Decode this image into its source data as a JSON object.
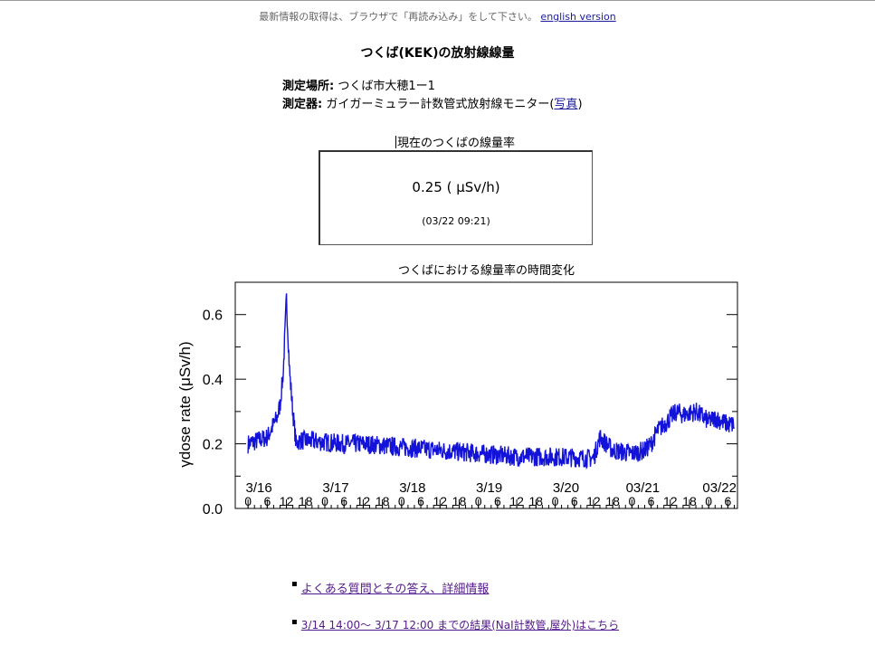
{
  "header": {
    "notice": "最新情報の取得は、ブラウザで「再読み込み」をして下さい。",
    "english_link": "english version"
  },
  "page_title": "つくば(KEK)の放射線線量",
  "info": {
    "location_label": "測定場所:",
    "location_value": "つくば市大穂1ー1",
    "device_label": "測定器:",
    "device_value": "ガイガーミュラー計数管式放射線モニター(",
    "photo_link": "写真",
    "device_close": ")"
  },
  "current": {
    "caption": "現在のつくばの線量率",
    "value": "0.25 ( μSv/h)",
    "timestamp": "(03/22 09:21)"
  },
  "chart_title": "つくばにおける線量率の時間変化",
  "chart_data": {
    "type": "line",
    "title": "",
    "ylabel": "γdose rate (μSv/h)",
    "xlabel": "",
    "ylim": [
      0.0,
      0.7
    ],
    "yticks": [
      "0.0",
      "0.2",
      "0.4",
      "0.6"
    ],
    "x_unit": "hours since 3/16 0:00",
    "date_labels": [
      "3/16",
      "3/17",
      "3/18",
      "3/19",
      "3/20",
      "03/21",
      "03/22"
    ],
    "hour_labels": [
      "0",
      "6",
      "12",
      "18"
    ],
    "x_range": [
      -4,
      153
    ],
    "series": [
      {
        "color": "#1212d8",
        "x": [
          0,
          3,
          6,
          9,
          10,
          11,
          12,
          13,
          14,
          15,
          16,
          18,
          24,
          30,
          36,
          48,
          60,
          72,
          84,
          96,
          108,
          110,
          114,
          120,
          124,
          126,
          128,
          130,
          132,
          134,
          136,
          140,
          144,
          146,
          150,
          152
        ],
        "y": [
          0.2,
          0.21,
          0.22,
          0.28,
          0.32,
          0.42,
          0.65,
          0.42,
          0.3,
          0.2,
          0.21,
          0.21,
          0.205,
          0.2,
          0.2,
          0.19,
          0.18,
          0.17,
          0.16,
          0.16,
          0.155,
          0.22,
          0.18,
          0.17,
          0.18,
          0.2,
          0.24,
          0.26,
          0.28,
          0.3,
          0.29,
          0.3,
          0.27,
          0.28,
          0.26,
          0.26
        ]
      }
    ]
  },
  "links": [
    {
      "text": "よくある質問とその答え、詳細情報"
    },
    {
      "text": "3/14 14:00～ 3/17 12:00 までの結果(NaI計数管,屋外)はこちら"
    }
  ]
}
